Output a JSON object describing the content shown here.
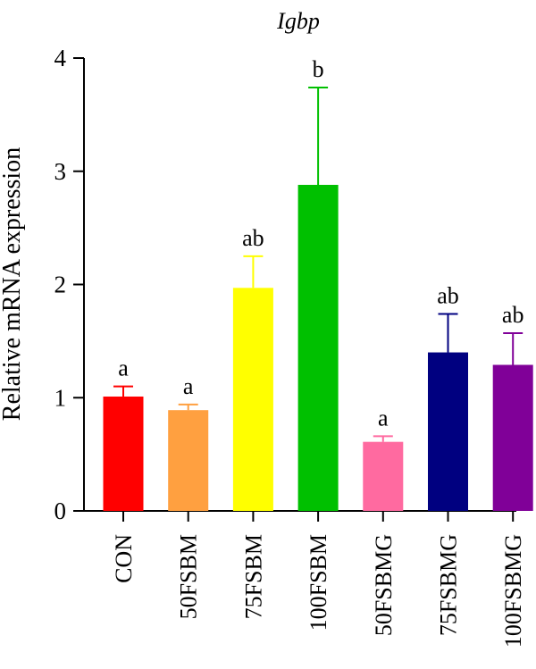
{
  "chart_data": {
    "type": "bar",
    "title": "Igbp",
    "ylabel": "Relative mRNA expression",
    "xlabel": "",
    "ylim": [
      0,
      4
    ],
    "yticks": [
      "0",
      "1",
      "2",
      "3",
      "4"
    ],
    "categories": [
      "CON",
      "50FSBM",
      "75FSBM",
      "100FSBM",
      "50FSBMG",
      "75FSBMG",
      "100FSBMG"
    ],
    "values": [
      1.01,
      0.89,
      1.97,
      2.88,
      0.61,
      1.4,
      1.29
    ],
    "errors": [
      0.09,
      0.05,
      0.28,
      0.86,
      0.05,
      0.34,
      0.28
    ],
    "annotations": [
      "a",
      "a",
      "ab",
      "b",
      "a",
      "ab",
      "ab"
    ],
    "colors": [
      "#ff0000",
      "#ffa040",
      "#ffff00",
      "#00c000",
      "#ff6aa0",
      "#000080",
      "#800098"
    ]
  }
}
